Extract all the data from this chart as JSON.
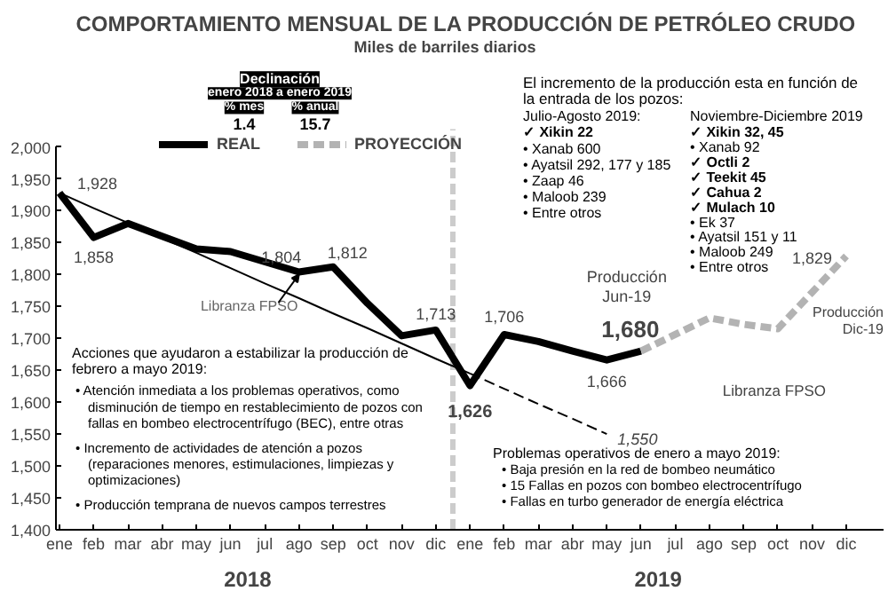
{
  "chart_data": {
    "type": "line",
    "title": "COMPORTAMIENTO MENSUAL DE LA PRODUCCIÓN DE PETRÓLEO CRUDO",
    "subtitle": "Miles de barriles diarios",
    "categories": [
      "ene",
      "feb",
      "mar",
      "abr",
      "may",
      "jun",
      "jul",
      "ago",
      "sep",
      "oct",
      "nov",
      "dic",
      "ene",
      "feb",
      "mar",
      "abr",
      "may",
      "jun",
      "jul",
      "ago",
      "sep",
      "oct",
      "nov",
      "dic"
    ],
    "ylim": [
      1400,
      2000
    ],
    "yticks": [
      {
        "value": 1400,
        "label": "1,400"
      },
      {
        "value": 1450,
        "label": "1,450"
      },
      {
        "value": 1500,
        "label": "1,500"
      },
      {
        "value": 1550,
        "label": "1,550"
      },
      {
        "value": 1600,
        "label": "1,600"
      },
      {
        "value": 1650,
        "label": "1,650"
      },
      {
        "value": 1700,
        "label": "1,700"
      },
      {
        "value": 1750,
        "label": "1,750"
      },
      {
        "value": 1800,
        "label": "1,800"
      },
      {
        "value": 1850,
        "label": "1,850"
      },
      {
        "value": 1900,
        "label": "1,900"
      },
      {
        "value": 1950,
        "label": "1,950"
      },
      {
        "value": 2000,
        "label": "2,000"
      }
    ],
    "grid": false,
    "legend": "top left",
    "series": [
      {
        "name": "REAL",
        "color": "#000000",
        "line_style": "solid",
        "values": [
          1928,
          1858,
          1880,
          1860,
          1840,
          1836,
          1820,
          1804,
          1812,
          1755,
          1704,
          1713,
          1626,
          1706,
          1695,
          1680,
          1666,
          1680,
          null,
          null,
          null,
          null,
          null,
          null
        ],
        "value_labels": [
          "1,928",
          "1,858",
          null,
          null,
          null,
          null,
          null,
          "1,804",
          "1,812",
          null,
          null,
          "1,713",
          "1,626",
          "1,706",
          null,
          null,
          "1,666",
          "1,680",
          null,
          null,
          null,
          null,
          null,
          null
        ]
      },
      {
        "name": "PROYECCIÓN",
        "color": "#b3b3b3",
        "line_style": "dashed",
        "values": [
          null,
          null,
          null,
          null,
          null,
          null,
          null,
          null,
          null,
          null,
          null,
          null,
          null,
          null,
          null,
          null,
          null,
          1680,
          1706,
          1732,
          1722,
          1715,
          1772,
          1829
        ],
        "value_labels": [
          null,
          null,
          null,
          null,
          null,
          null,
          null,
          null,
          null,
          null,
          null,
          null,
          null,
          null,
          null,
          null,
          null,
          null,
          null,
          null,
          null,
          null,
          null,
          "1,829"
        ]
      },
      {
        "color": "#000000",
        "line_style": "solid",
        "values": [
          1928,
          1904,
          1881,
          1857,
          1834,
          1810,
          1786,
          1763,
          1739,
          1716,
          1692,
          1668,
          1645,
          null,
          null,
          null,
          null,
          null,
          null,
          null,
          null,
          null,
          null,
          null
        ]
      },
      {
        "color": "#000000",
        "line_style": "dashed",
        "values": [
          null,
          null,
          null,
          null,
          null,
          null,
          null,
          null,
          null,
          null,
          null,
          null,
          1645,
          1621,
          1597,
          1574,
          1550,
          null,
          null,
          null,
          null,
          null,
          null,
          null
        ],
        "value_labels": [
          null,
          null,
          null,
          null,
          null,
          null,
          null,
          null,
          null,
          null,
          null,
          null,
          null,
          null,
          null,
          null,
          "1,550",
          null,
          null,
          null,
          null,
          null,
          null,
          null
        ]
      }
    ],
    "annotations": [
      "Declinación",
      "enero 2018 a enero 2019",
      "% mes",
      "% anual",
      "1.4",
      "15.7",
      "El incremento de la producción esta en función de",
      "la entrada de los pozos:",
      "Julio-Agosto 2019:",
      "✓ Xikin 22",
      "• Xanab 600",
      "• Ayatsil 292, 177 y 185",
      "• Zaap 46",
      "• Maloob 239",
      "• Entre otros",
      "Noviembre-Diciembre 2019",
      "✓ Xikin 32, 45",
      "• Xanab 92",
      "✓ Octli 2",
      "✓ Teekit 45",
      "✓ Cahua 2",
      "✓ Mulach 10",
      "• Ek 37",
      "• Ayatsil 151 y 11",
      "• Maloob 249",
      "• Entre otros",
      "Acciones que ayudaron a estabilizar la producción de",
      "febrero a mayo 2019:",
      "• Atención inmediata a los problemas operativos, como",
      "disminución de tiempo en restablecimiento de pozos con",
      "fallas en bombeo electrocentrífugo (BEC), entre otras",
      "• Incremento de actividades de atención a pozos",
      "(reparaciones menores, estimulaciones, limpiezas y",
      "optimizaciones)",
      "• Producción temprana de nuevos campos terrestres",
      "Problemas operativos de enero a mayo 2019:",
      "• Baja presión en la red de bombeo neumático",
      "• 15 Fallas en pozos con bombeo electrocentrífugo",
      "• Fallas en turbo generador de energía eléctrica",
      "2018",
      "2019",
      "Libranza FPSO",
      "Producción\nJun-19",
      "Producción\nDic-19",
      "Libranza FPSO"
    ]
  }
}
